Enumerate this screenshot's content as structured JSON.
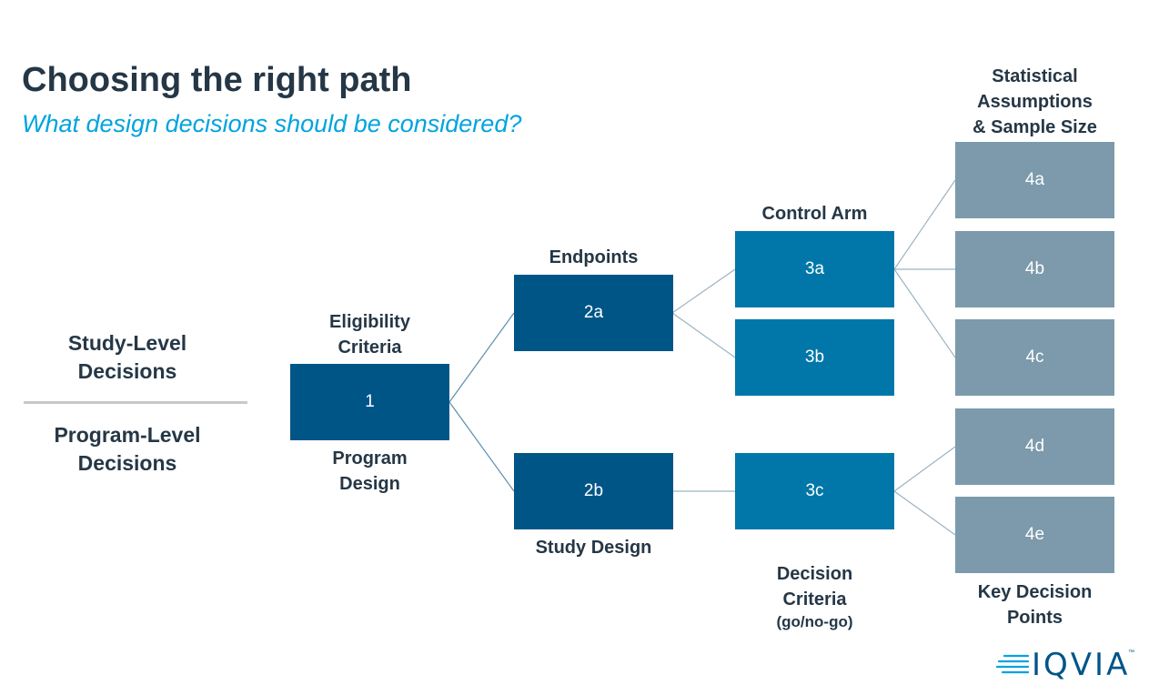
{
  "header": {
    "title": "Choosing the right path",
    "subtitle": "What design decisions should be considered?"
  },
  "sidebar": {
    "study_level": "Study-Level\nDecisions",
    "program_level": "Program-Level\nDecisions"
  },
  "captions": {
    "eligibility": "Eligibility\nCriteria",
    "program_design": "Program\nDesign",
    "endpoints": "Endpoints",
    "study_design": "Study Design",
    "control_arm": "Control Arm",
    "decision_criteria": "Decision\nCriteria",
    "decision_criteria_sub": "(go/no-go)",
    "statistical": "Statistical\nAssumptions\n& Sample Size",
    "key_decision": "Key Decision\nPoints"
  },
  "nodes": {
    "n1": "1",
    "n2a": "2a",
    "n2b": "2b",
    "n3a": "3a",
    "n3b": "3b",
    "n3c": "3c",
    "n4a": "4a",
    "n4b": "4b",
    "n4c": "4c",
    "n4d": "4d",
    "n4e": "4e"
  },
  "colors": {
    "dark_box": "#005587",
    "mid_box": "#0077a8",
    "grey_box": "#7c9aab",
    "accent_subtitle": "#00a3e0",
    "text": "#253746"
  },
  "logo": {
    "text": "IQVIA",
    "trademark": "™"
  }
}
